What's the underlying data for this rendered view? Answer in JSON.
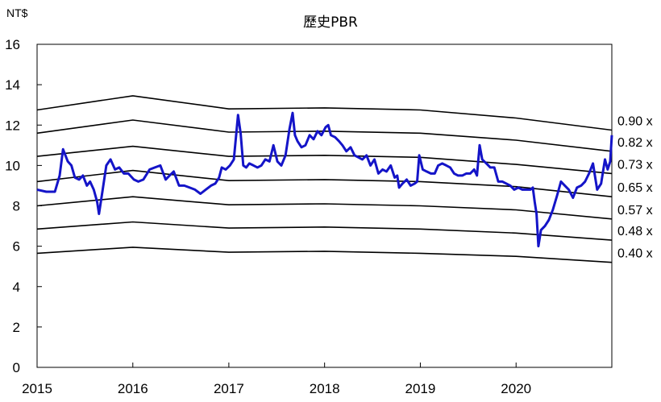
{
  "chart_data": {
    "type": "line",
    "title": "歷史PBR",
    "unit_label": "NT$",
    "xlabel": "",
    "ylabel": "",
    "ylim": [
      0,
      16
    ],
    "xlim": [
      "2015-01-01",
      "2020-12-31"
    ],
    "x_ticks": [
      "2015",
      "2016",
      "2017",
      "2018",
      "2019",
      "2020"
    ],
    "y_ticks": [
      "0",
      "2",
      "4",
      "6",
      "8",
      "10",
      "12",
      "14",
      "16"
    ],
    "grid": false,
    "colors": {
      "price": "#1414c8",
      "bands": "#000000",
      "axis": "#000000"
    },
    "price_series": {
      "x": [
        "2015-01-01",
        "2015-02-05",
        "2015-03-10",
        "2015-03-28",
        "2015-04-10",
        "2015-04-28",
        "2015-05-12",
        "2015-05-25",
        "2015-06-10",
        "2015-06-25",
        "2015-07-10",
        "2015-07-22",
        "2015-08-05",
        "2015-08-18",
        "2015-08-25",
        "2015-09-08",
        "2015-09-22",
        "2015-10-08",
        "2015-10-25",
        "2015-11-10",
        "2015-11-28",
        "2015-12-15",
        "2016-01-05",
        "2016-01-22",
        "2016-02-10",
        "2016-03-05",
        "2016-03-25",
        "2016-04-15",
        "2016-05-05",
        "2016-05-20",
        "2016-06-05",
        "2016-06-25",
        "2016-07-15",
        "2016-08-05",
        "2016-08-25",
        "2016-09-15",
        "2016-10-05",
        "2016-10-25",
        "2016-11-10",
        "2016-11-25",
        "2016-12-05",
        "2016-12-20",
        "2017-01-05",
        "2017-01-20",
        "2017-02-05",
        "2017-02-15",
        "2017-02-25",
        "2017-03-08",
        "2017-03-20",
        "2017-04-05",
        "2017-04-20",
        "2017-05-05",
        "2017-05-20",
        "2017-06-05",
        "2017-06-20",
        "2017-07-05",
        "2017-07-20",
        "2017-08-05",
        "2017-08-20",
        "2017-09-01",
        "2017-09-10",
        "2017-09-20",
        "2017-10-05",
        "2017-10-20",
        "2017-11-05",
        "2017-11-20",
        "2017-12-05",
        "2017-12-20",
        "2018-01-05",
        "2018-01-15",
        "2018-01-25",
        "2018-02-10",
        "2018-02-25",
        "2018-03-10",
        "2018-03-25",
        "2018-04-10",
        "2018-04-25",
        "2018-05-10",
        "2018-05-25",
        "2018-06-10",
        "2018-06-25",
        "2018-07-10",
        "2018-07-25",
        "2018-08-10",
        "2018-08-25",
        "2018-09-10",
        "2018-09-25",
        "2018-10-05",
        "2018-10-12",
        "2018-10-25",
        "2018-11-10",
        "2018-11-25",
        "2018-12-10",
        "2018-12-20",
        "2018-12-28",
        "2019-01-10",
        "2019-01-25",
        "2019-02-10",
        "2019-02-25",
        "2019-03-10",
        "2019-03-25",
        "2019-04-10",
        "2019-04-25",
        "2019-05-10",
        "2019-05-25",
        "2019-06-10",
        "2019-06-25",
        "2019-07-10",
        "2019-07-25",
        "2019-08-05",
        "2019-08-15",
        "2019-08-25",
        "2019-09-10",
        "2019-09-25",
        "2019-10-10",
        "2019-10-25",
        "2019-11-10",
        "2019-11-25",
        "2019-12-10",
        "2019-12-25",
        "2020-01-10",
        "2020-01-25",
        "2020-02-10",
        "2020-02-25",
        "2020-03-05",
        "2020-03-12",
        "2020-03-19",
        "2020-03-26",
        "2020-04-05",
        "2020-04-20",
        "2020-05-05",
        "2020-05-20",
        "2020-06-05",
        "2020-06-20",
        "2020-07-05",
        "2020-07-20",
        "2020-08-05",
        "2020-08-20",
        "2020-09-05",
        "2020-09-20",
        "2020-10-05",
        "2020-10-20",
        "2020-11-05",
        "2020-11-20",
        "2020-12-05",
        "2020-12-15",
        "2020-12-25",
        "2020-12-31"
      ],
      "y": [
        8.8,
        8.7,
        8.7,
        9.5,
        10.8,
        10.2,
        10.0,
        9.4,
        9.3,
        9.5,
        9.0,
        9.2,
        8.8,
        8.2,
        7.6,
        8.8,
        10.0,
        10.3,
        9.8,
        9.9,
        9.6,
        9.6,
        9.3,
        9.2,
        9.3,
        9.8,
        9.9,
        10.0,
        9.3,
        9.5,
        9.7,
        9.0,
        9.0,
        8.9,
        8.8,
        8.6,
        8.8,
        9.0,
        9.1,
        9.4,
        9.9,
        9.8,
        10.0,
        10.3,
        12.5,
        11.6,
        10.0,
        9.9,
        10.1,
        10.0,
        9.9,
        10.0,
        10.3,
        10.2,
        11.0,
        10.2,
        10.0,
        10.5,
        11.8,
        12.6,
        11.5,
        11.2,
        10.9,
        11.0,
        11.5,
        11.3,
        11.7,
        11.5,
        11.9,
        12.0,
        11.5,
        11.4,
        11.2,
        11.0,
        10.7,
        10.9,
        10.5,
        10.4,
        10.3,
        10.5,
        10.0,
        10.3,
        9.6,
        9.8,
        9.7,
        10.0,
        9.4,
        9.5,
        8.9,
        9.1,
        9.3,
        9.0,
        9.1,
        9.2,
        10.5,
        9.8,
        9.7,
        9.6,
        9.6,
        10.0,
        10.1,
        10.0,
        9.9,
        9.6,
        9.5,
        9.5,
        9.6,
        9.6,
        9.8,
        9.5,
        11.0,
        10.3,
        10.1,
        9.9,
        9.9,
        9.2,
        9.2,
        9.1,
        9.0,
        8.8,
        8.9,
        8.8,
        8.8,
        8.8,
        8.9,
        8.2,
        7.6,
        6.0,
        6.8,
        7.0,
        7.3,
        7.8,
        8.5,
        9.2,
        9.0,
        8.8,
        8.4,
        8.9,
        9.0,
        9.2,
        9.6,
        10.1,
        8.8,
        9.1,
        10.3,
        9.8,
        10.2,
        11.5
      ]
    },
    "bands": [
      {
        "name": "0.90 x",
        "x": [
          "2015-01-01",
          "2016-01-01",
          "2017-01-01",
          "2018-01-01",
          "2019-01-01",
          "2020-01-01",
          "2020-12-31"
        ],
        "y": [
          12.75,
          13.45,
          12.8,
          12.85,
          12.75,
          12.35,
          11.75
        ]
      },
      {
        "name": "0.82 x",
        "x": [
          "2015-01-01",
          "2016-01-01",
          "2017-01-01",
          "2018-01-01",
          "2019-01-01",
          "2020-01-01",
          "2020-12-31"
        ],
        "y": [
          11.6,
          12.25,
          11.65,
          11.7,
          11.6,
          11.25,
          10.7
        ]
      },
      {
        "name": "0.73 x",
        "x": [
          "2015-01-01",
          "2016-01-01",
          "2017-01-01",
          "2018-01-01",
          "2019-01-01",
          "2020-01-01",
          "2020-12-31"
        ],
        "y": [
          10.45,
          10.95,
          10.45,
          10.5,
          10.4,
          10.05,
          9.6
        ]
      },
      {
        "name": "0.65 x",
        "x": [
          "2015-01-01",
          "2016-01-01",
          "2017-01-01",
          "2018-01-01",
          "2019-01-01",
          "2020-01-01",
          "2020-12-31"
        ],
        "y": [
          9.2,
          9.75,
          9.25,
          9.3,
          9.2,
          8.95,
          8.45
        ]
      },
      {
        "name": "0.57 x",
        "x": [
          "2015-01-01",
          "2016-01-01",
          "2017-01-01",
          "2018-01-01",
          "2019-01-01",
          "2020-01-01",
          "2020-12-31"
        ],
        "y": [
          8.0,
          8.45,
          8.05,
          8.1,
          8.0,
          7.8,
          7.35
        ]
      },
      {
        "name": "0.48 x",
        "x": [
          "2015-01-01",
          "2016-01-01",
          "2017-01-01",
          "2018-01-01",
          "2019-01-01",
          "2020-01-01",
          "2020-12-31"
        ],
        "y": [
          6.85,
          7.2,
          6.9,
          6.95,
          6.85,
          6.65,
          6.3
        ]
      },
      {
        "name": "0.40 x",
        "x": [
          "2015-01-01",
          "2016-01-01",
          "2017-01-01",
          "2018-01-01",
          "2019-01-01",
          "2020-01-01",
          "2020-12-31"
        ],
        "y": [
          5.65,
          5.95,
          5.7,
          5.75,
          5.65,
          5.5,
          5.2
        ]
      }
    ]
  }
}
